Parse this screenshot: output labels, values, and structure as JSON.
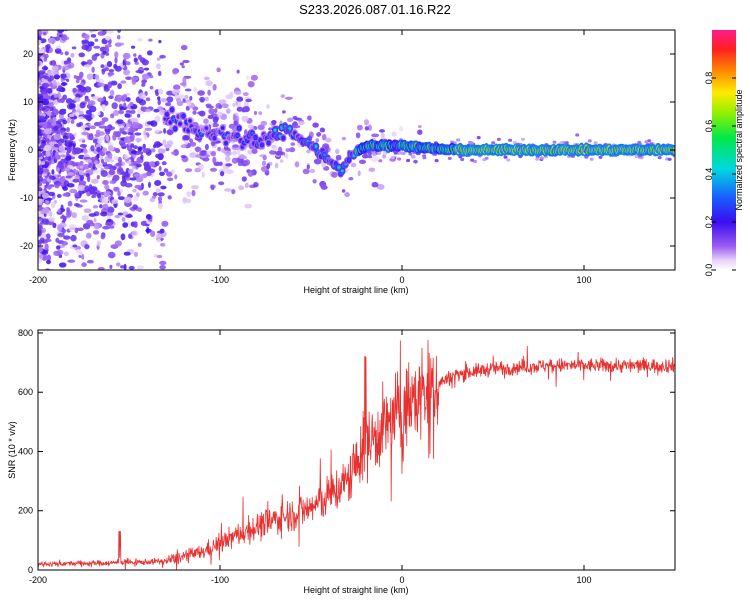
{
  "title": "S233.2026.087.01.16.R22",
  "chart_data": [
    {
      "type": "heatmap",
      "name": "spectrogram",
      "xlabel": "Height of straight line (km)",
      "ylabel": "Frequency (Hz)",
      "xlim": [
        -200,
        150
      ],
      "ylim": [
        -25,
        25
      ],
      "xticks": [
        -200,
        -100,
        0,
        100
      ],
      "xtick_labels": [
        "-200",
        "-100",
        "0",
        "100"
      ],
      "yticks": [
        -20,
        -10,
        0,
        10,
        20
      ],
      "ytick_labels": [
        "-20",
        "-10",
        "0",
        "10",
        "20"
      ],
      "colorbar": {
        "label": "Normalized spectral amplitude",
        "range": [
          0,
          1
        ],
        "ticks": [
          0,
          0.2,
          0.4,
          0.6,
          0.8
        ],
        "tick_labels": [
          "0.0",
          "0.2",
          "0.4",
          "0.6",
          "0.8"
        ]
      },
      "ridge_center_hz": [
        {
          "x": -125,
          "y": 6
        },
        {
          "x": -100,
          "y": 3
        },
        {
          "x": -75,
          "y": 2
        },
        {
          "x": -62,
          "y": 4
        },
        {
          "x": -50,
          "y": 1
        },
        {
          "x": -40,
          "y": -2
        },
        {
          "x": -33,
          "y": -4
        },
        {
          "x": -28,
          "y": -1
        },
        {
          "x": -20,
          "y": 0.8
        },
        {
          "x": 0,
          "y": 1
        },
        {
          "x": 10,
          "y": 0.5
        },
        {
          "x": 30,
          "y": 0
        },
        {
          "x": 150,
          "y": 0
        }
      ]
    },
    {
      "type": "line",
      "name": "snr",
      "xlabel": "Height of straight line (km)",
      "ylabel": "SNR (10 * v/v)",
      "xlim": [
        -200,
        150
      ],
      "ylim": [
        0,
        810
      ],
      "xticks": [
        -200,
        -100,
        0,
        100
      ],
      "xtick_labels": [
        "-200",
        "-100",
        "0",
        "100"
      ],
      "yticks": [
        0,
        200,
        400,
        600,
        800
      ],
      "ytick_labels": [
        "0",
        "200",
        "400",
        "600",
        "800"
      ],
      "color": "#e8312f",
      "trend": [
        {
          "x": -200,
          "y": 20
        },
        {
          "x": -150,
          "y": 25
        },
        {
          "x": -130,
          "y": 30
        },
        {
          "x": -110,
          "y": 60
        },
        {
          "x": -90,
          "y": 120
        },
        {
          "x": -70,
          "y": 170
        },
        {
          "x": -50,
          "y": 210
        },
        {
          "x": -40,
          "y": 250
        },
        {
          "x": -30,
          "y": 300
        },
        {
          "x": -25,
          "y": 360
        },
        {
          "x": -20,
          "y": 420
        },
        {
          "x": -10,
          "y": 480
        },
        {
          "x": 0,
          "y": 540
        },
        {
          "x": 10,
          "y": 590
        },
        {
          "x": 20,
          "y": 630
        },
        {
          "x": 30,
          "y": 660
        },
        {
          "x": 50,
          "y": 680
        },
        {
          "x": 80,
          "y": 690
        },
        {
          "x": 120,
          "y": 690
        },
        {
          "x": 150,
          "y": 690
        }
      ]
    }
  ]
}
